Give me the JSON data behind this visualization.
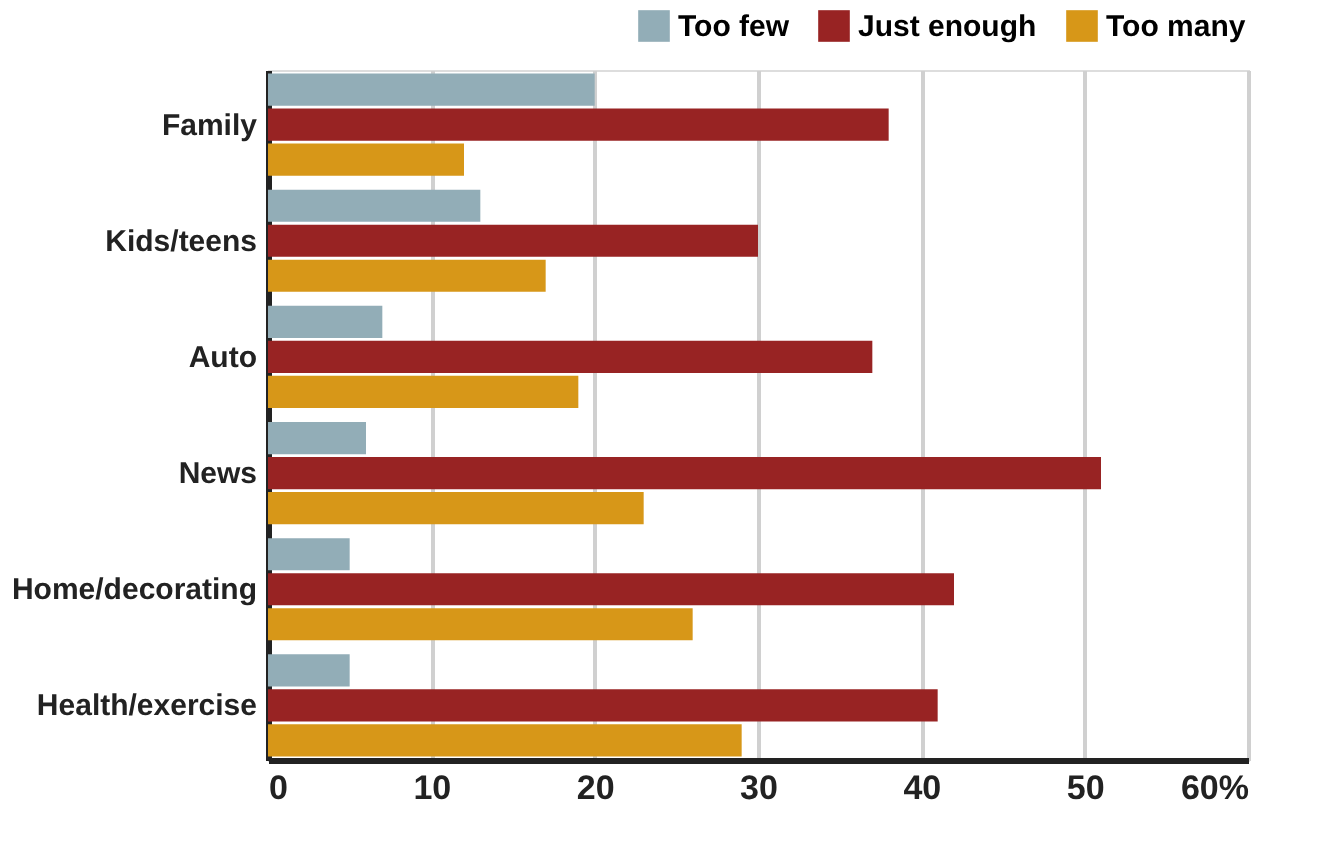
{
  "chart_data": {
    "type": "bar",
    "orientation": "horizontal",
    "categories": [
      "Family",
      "Kids/teens",
      "Auto",
      "News",
      "Home/decorating",
      "Health/exercise"
    ],
    "series": [
      {
        "name": "Too few",
        "color": "#92adb7",
        "values": [
          20,
          13,
          7,
          6,
          5,
          5
        ]
      },
      {
        "name": "Just enough",
        "color": "#982323",
        "values": [
          38,
          30,
          37,
          51,
          42,
          41
        ]
      },
      {
        "name": "Too many",
        "color": "#d79718",
        "values": [
          12,
          17,
          19,
          23,
          26,
          29
        ]
      }
    ],
    "xlim": [
      0,
      60
    ],
    "xticks": [
      0,
      10,
      20,
      30,
      40,
      50,
      {
        "value": 60,
        "label": "60%"
      }
    ],
    "grid": "x",
    "legend": "top right"
  }
}
